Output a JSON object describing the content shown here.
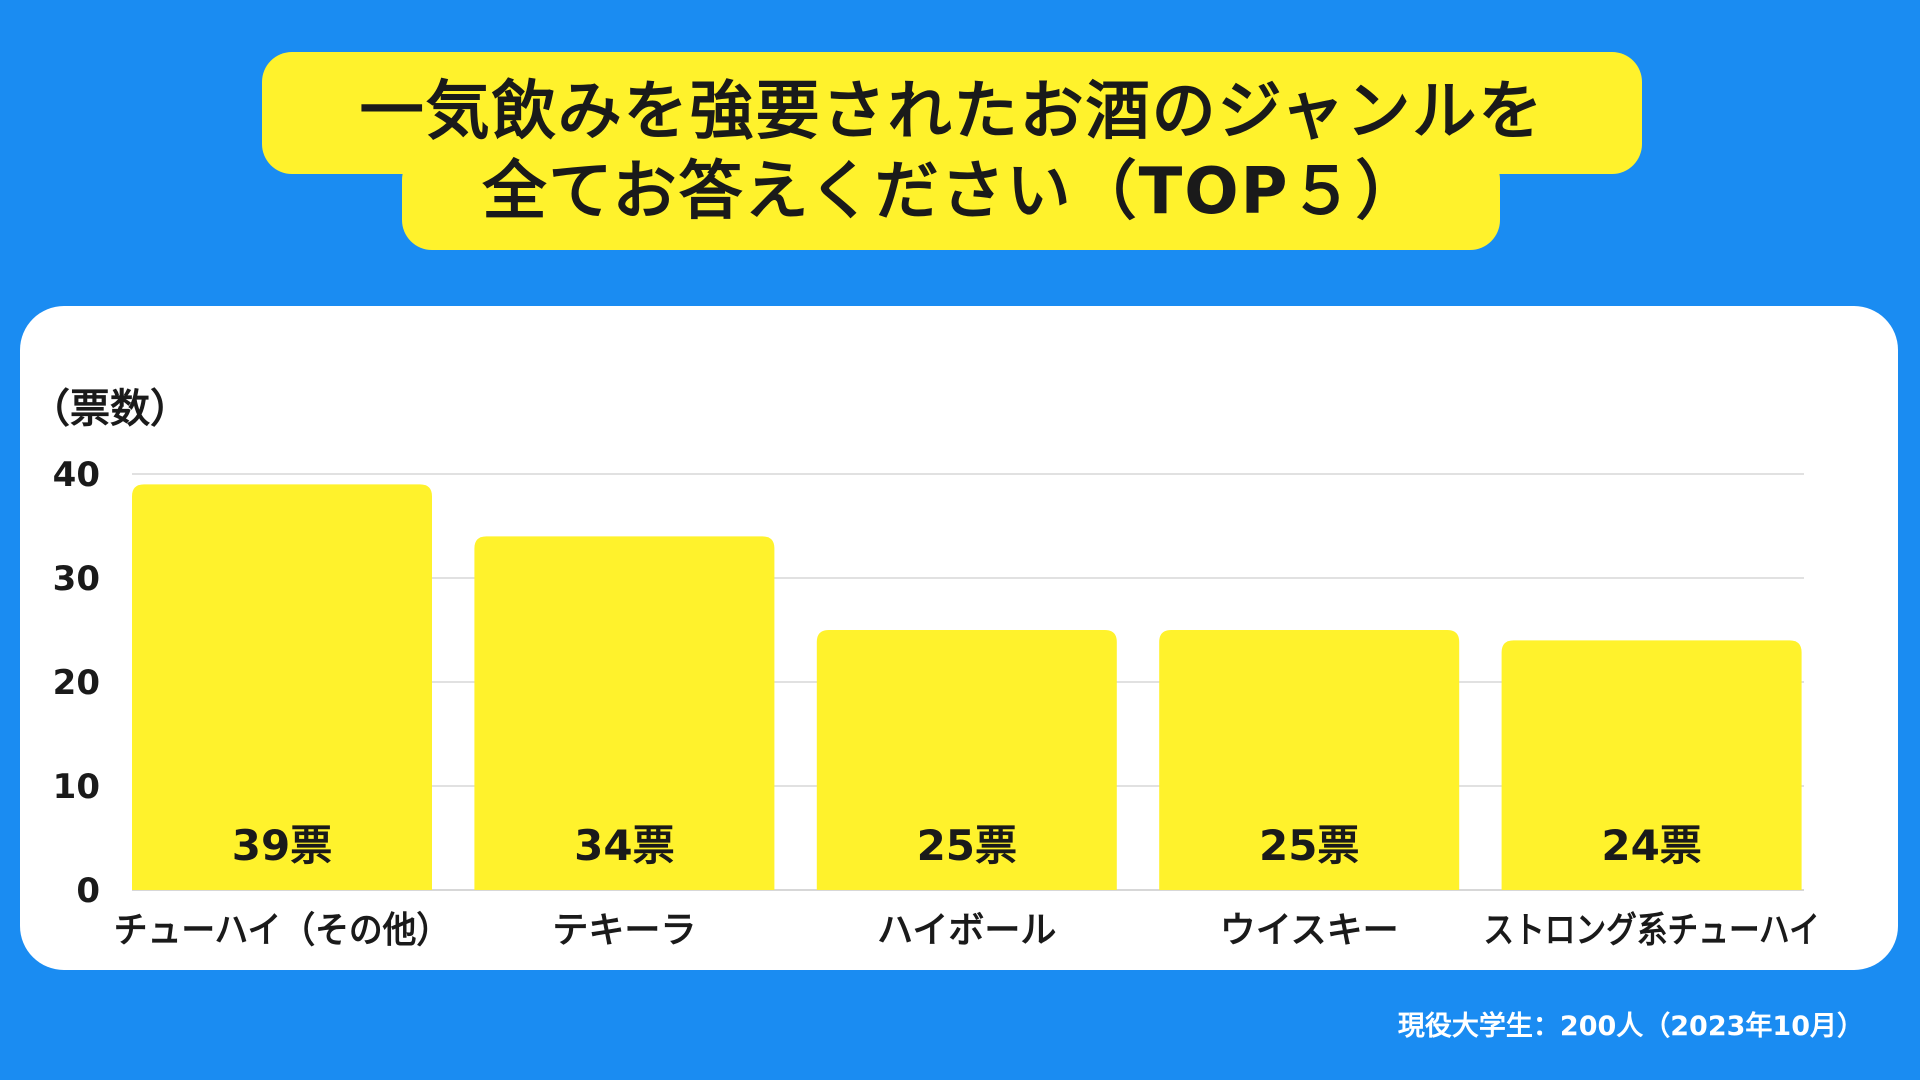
{
  "title": {
    "line1": "一気飲みを強要されたお酒のジャンルを",
    "line2": "全てお答えください（TOP５）"
  },
  "footnote": "現役大学生：200人（2023年10月）",
  "chart_data": {
    "type": "bar",
    "ylabel": "（票数）",
    "ylim": [
      0,
      40
    ],
    "yticks": [
      0,
      10,
      20,
      30,
      40
    ],
    "categories": [
      "チューハイ（その他）",
      "テキーラ",
      "ハイボール",
      "ウイスキー",
      "ストロング系チューハイ"
    ],
    "values": [
      39,
      34,
      25,
      25,
      24
    ],
    "value_labels": [
      "39票",
      "34票",
      "25票",
      "25票",
      "24票"
    ],
    "grid": true,
    "legend": "none",
    "colors": {
      "bar": "#fff22c",
      "grid": "#d7d7d7",
      "text": "#1a1a1a"
    }
  }
}
